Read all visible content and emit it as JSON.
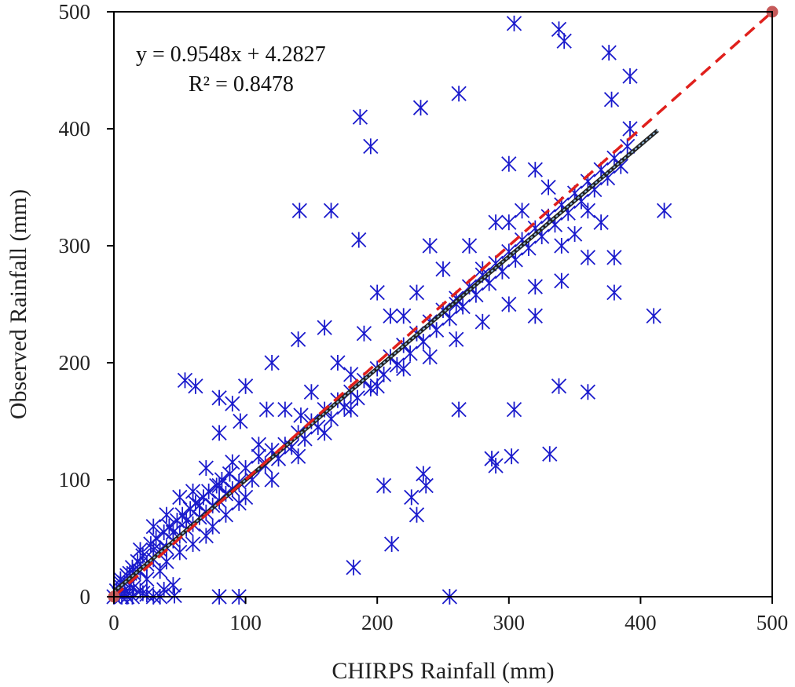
{
  "chart_data": {
    "type": "scatter",
    "title": "",
    "xlabel": "CHIRPS Rainfall (mm)",
    "ylabel": "Observed Rainfall (mm)",
    "xlim": [
      0,
      500
    ],
    "ylim": [
      0,
      500
    ],
    "xticks": [
      0,
      100,
      200,
      300,
      400,
      500
    ],
    "yticks": [
      0,
      100,
      200,
      300,
      400,
      500
    ],
    "xtick_labels": [
      "0",
      "100",
      "200",
      "300",
      "400",
      "500"
    ],
    "ytick_labels": [
      "0",
      "100",
      "200",
      "300",
      "400",
      "500"
    ],
    "grid": false,
    "legend": "none",
    "annotations": {
      "equation": "y = 0.9548x + 4.2827",
      "r_squared": "R² = 0.8478"
    },
    "colors": {
      "points": "#1a1acc",
      "trendline_outer": "#222222",
      "trendline_inner": "#8fb7d8",
      "one_to_one_line": "#e0201c",
      "endpoint_marker": "#c55a5a",
      "axis": "#000000"
    },
    "marker": "x-asterisk",
    "series": [
      {
        "type": "scatter",
        "x": [
          0,
          2,
          4,
          5,
          6,
          8,
          10,
          12,
          14,
          15,
          18,
          20,
          22,
          25,
          28,
          30,
          32,
          35,
          38,
          40,
          42,
          45,
          48,
          50,
          52,
          55,
          58,
          60,
          62,
          65,
          68,
          70,
          72,
          75,
          78,
          80,
          82,
          85,
          88,
          90,
          95,
          100,
          105,
          110,
          115,
          120,
          125,
          130,
          135,
          140,
          145,
          150,
          155,
          160,
          165,
          170,
          175,
          180,
          185,
          190,
          195,
          200,
          205,
          210,
          215,
          220,
          225,
          230,
          235,
          240,
          245,
          250,
          255,
          260,
          265,
          270,
          275,
          280,
          285,
          290,
          295,
          300,
          305,
          310,
          315,
          320,
          325,
          330,
          335,
          340,
          345,
          350,
          355,
          360,
          365,
          370,
          375,
          380,
          385,
          390,
          5,
          8,
          12,
          15,
          20,
          25,
          30,
          35,
          40,
          45,
          50,
          55,
          60,
          65,
          70,
          75,
          80,
          85,
          90,
          95,
          100,
          110,
          120,
          130,
          140,
          150,
          160,
          170,
          180,
          190,
          200,
          210,
          220,
          230,
          240,
          250,
          260,
          270,
          280,
          290,
          300,
          310,
          320,
          330,
          340,
          350,
          360,
          370,
          380,
          10,
          20,
          30,
          40,
          50,
          60,
          70,
          80,
          90,
          100,
          120,
          140,
          160,
          180,
          200,
          220,
          240,
          260,
          280,
          300,
          320,
          340,
          360,
          380,
          304,
          338,
          342,
          376,
          392,
          378,
          187,
          233,
          262,
          410,
          418,
          392,
          141,
          165,
          186,
          304,
          338,
          360,
          54,
          62,
          80,
          96,
          116,
          142,
          255,
          262,
          287,
          290,
          302,
          331,
          226,
          237,
          235,
          230,
          211,
          182,
          95,
          80,
          205,
          300,
          195,
          320,
          20,
          25,
          35,
          45,
          6,
          14,
          22,
          30,
          38,
          46
        ],
        "y": [
          0,
          5,
          2,
          15,
          8,
          12,
          18,
          10,
          25,
          20,
          30,
          22,
          35,
          28,
          45,
          32,
          50,
          40,
          55,
          42,
          60,
          48,
          65,
          52,
          70,
          58,
          75,
          62,
          80,
          68,
          85,
          72,
          90,
          78,
          95,
          82,
          100,
          88,
          105,
          92,
          98,
          110,
          100,
          120,
          112,
          125,
          118,
          130,
          128,
          140,
          135,
          150,
          145,
          160,
          152,
          168,
          162,
          175,
          170,
          185,
          178,
          195,
          190,
          205,
          198,
          215,
          208,
          225,
          218,
          235,
          228,
          245,
          238,
          255,
          248,
          265,
          258,
          275,
          268,
          285,
          278,
          295,
          288,
          305,
          298,
          315,
          308,
          325,
          318,
          335,
          328,
          345,
          338,
          355,
          348,
          365,
          358,
          375,
          368,
          385,
          12,
          3,
          20,
          8,
          28,
          15,
          40,
          22,
          30,
          55,
          38,
          65,
          45,
          78,
          52,
          60,
          95,
          70,
          115,
          80,
          85,
          130,
          100,
          160,
          120,
          175,
          140,
          200,
          160,
          225,
          180,
          240,
          195,
          260,
          205,
          280,
          220,
          300,
          235,
          320,
          250,
          330,
          265,
          350,
          270,
          310,
          290,
          320,
          260,
          0,
          40,
          60,
          70,
          85,
          90,
          110,
          140,
          165,
          180,
          200,
          220,
          230,
          190,
          260,
          240,
          300,
          250,
          280,
          320,
          240,
          300,
          330,
          290,
          490,
          485,
          475,
          465,
          445,
          425,
          410,
          418,
          430,
          240,
          330,
          400,
          330,
          330,
          305,
          160,
          180,
          175,
          185,
          180,
          170,
          150,
          160,
          155,
          0,
          160,
          118,
          112,
          120,
          122,
          85,
          95,
          105,
          70,
          45,
          25,
          0,
          0,
          95,
          370,
          385,
          365,
          5,
          2,
          0,
          10,
          0,
          0,
          3,
          0,
          6,
          1
        ]
      }
    ],
    "trendline": {
      "slope": 0.9548,
      "intercept": 4.2827,
      "x_range": [
        0,
        413
      ]
    },
    "one_to_one_line": {
      "x": [
        0,
        500
      ],
      "y": [
        0,
        500
      ]
    }
  }
}
